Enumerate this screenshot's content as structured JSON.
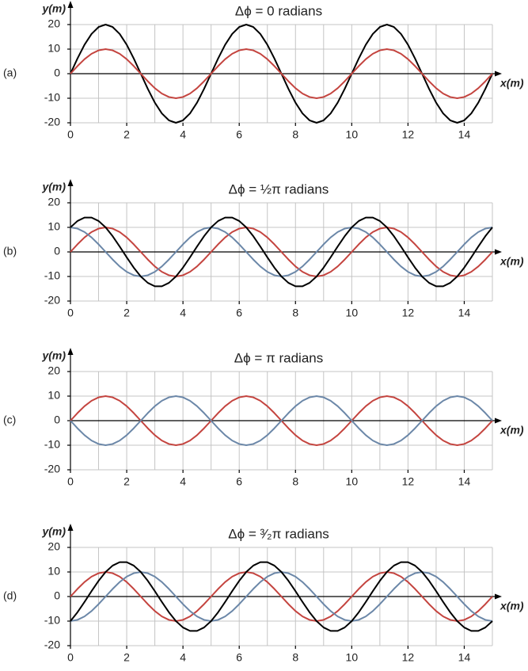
{
  "chart_data": [
    {
      "type": "line",
      "panel_label": "(a)",
      "title": "Δϕ = 0 radians",
      "x_label": "x(m)",
      "y_label": "y(m)",
      "x": [
        0,
        0.25,
        0.5,
        0.75,
        1,
        1.25,
        1.5,
        1.75,
        2,
        2.25,
        2.5,
        2.75,
        3,
        3.25,
        3.5,
        3.75,
        4,
        4.25,
        4.5,
        4.75,
        5,
        5.25,
        5.5,
        5.75,
        6,
        6.25,
        6.5,
        6.75,
        7,
        7.25,
        7.5,
        7.75,
        8,
        8.25,
        8.5,
        8.75,
        9,
        9.25,
        9.5,
        9.75,
        10,
        10.25,
        10.5,
        10.75,
        11,
        11.25,
        11.5,
        11.75,
        12,
        12.25,
        12.5,
        12.75,
        13,
        13.25,
        13.5,
        13.75,
        14,
        14.25,
        14.5,
        14.75,
        15
      ],
      "series": [
        {
          "color": "#000000",
          "values": [
            0,
            6.2,
            11.8,
            16.2,
            19,
            20,
            19,
            16.2,
            11.8,
            6.2,
            0,
            -6.2,
            -11.8,
            -16.2,
            -19,
            -20,
            -19,
            -16.2,
            -11.8,
            -6.2,
            0,
            6.2,
            11.8,
            16.2,
            19,
            20,
            19,
            16.2,
            11.8,
            6.2,
            0,
            -6.2,
            -11.8,
            -16.2,
            -19,
            -20,
            -19,
            -16.2,
            -11.8,
            -6.2,
            0,
            6.2,
            11.8,
            16.2,
            19,
            20,
            19,
            16.2,
            11.8,
            6.2,
            0,
            -6.2,
            -11.8,
            -16.2,
            -19,
            -20,
            -19,
            -16.2,
            -11.8,
            -6.2,
            0
          ]
        },
        {
          "color": "#c4443f",
          "values": [
            0,
            3.1,
            5.9,
            8.1,
            9.5,
            10,
            9.5,
            8.1,
            5.9,
            3.1,
            0,
            -3.1,
            -5.9,
            -8.1,
            -9.5,
            -10,
            -9.5,
            -8.1,
            -5.9,
            -3.1,
            0,
            3.1,
            5.9,
            8.1,
            9.5,
            10,
            9.5,
            8.1,
            5.9,
            3.1,
            0,
            -3.1,
            -5.9,
            -8.1,
            -9.5,
            -10,
            -9.5,
            -8.1,
            -5.9,
            -3.1,
            0,
            3.1,
            5.9,
            8.1,
            9.5,
            10,
            9.5,
            8.1,
            5.9,
            3.1,
            0,
            -3.1,
            -5.9,
            -8.1,
            -9.5,
            -10,
            -9.5,
            -8.1,
            -5.9,
            -3.1,
            0
          ]
        }
      ],
      "xlim": [
        0,
        15
      ],
      "ylim": [
        -20,
        20
      ],
      "xticks": [
        0,
        2,
        4,
        6,
        8,
        10,
        12,
        14
      ],
      "x_minor_ticks": [
        1,
        3,
        5,
        7,
        9,
        11,
        13,
        15
      ],
      "yticks": [
        -20,
        -10,
        0,
        10,
        20
      ],
      "grid": true
    },
    {
      "type": "line",
      "panel_label": "(b)",
      "title": "Δϕ = ½π radians",
      "x_label": "x(m)",
      "y_label": "y(m)",
      "x": [
        0,
        0.25,
        0.5,
        0.75,
        1,
        1.25,
        1.5,
        1.75,
        2,
        2.25,
        2.5,
        2.75,
        3,
        3.25,
        3.5,
        3.75,
        4,
        4.25,
        4.5,
        4.75,
        5,
        5.25,
        5.5,
        5.75,
        6,
        6.25,
        6.5,
        6.75,
        7,
        7.25,
        7.5,
        7.75,
        8,
        8.25,
        8.5,
        8.75,
        9,
        9.25,
        9.5,
        9.75,
        10,
        10.25,
        10.5,
        10.75,
        11,
        11.25,
        11.5,
        11.75,
        12,
        12.25,
        12.5,
        12.75,
        13,
        13.25,
        13.5,
        13.75,
        14,
        14.25,
        14.5,
        14.75,
        15
      ],
      "series": [
        {
          "color": "#c4443f",
          "values": [
            0,
            3.1,
            5.9,
            8.1,
            9.5,
            10,
            9.5,
            8.1,
            5.9,
            3.1,
            0,
            -3.1,
            -5.9,
            -8.1,
            -9.5,
            -10,
            -9.5,
            -8.1,
            -5.9,
            -3.1,
            0,
            3.1,
            5.9,
            8.1,
            9.5,
            10,
            9.5,
            8.1,
            5.9,
            3.1,
            0,
            -3.1,
            -5.9,
            -8.1,
            -9.5,
            -10,
            -9.5,
            -8.1,
            -5.9,
            -3.1,
            0,
            3.1,
            5.9,
            8.1,
            9.5,
            10,
            9.5,
            8.1,
            5.9,
            3.1,
            0,
            -3.1,
            -5.9,
            -8.1,
            -9.5,
            -10,
            -9.5,
            -8.1,
            -5.9,
            -3.1,
            0
          ]
        },
        {
          "color": "#6b87a8",
          "values": [
            10,
            9.5,
            8.1,
            5.9,
            3.1,
            0,
            -3.1,
            -5.9,
            -8.1,
            -9.5,
            -10,
            -9.5,
            -8.1,
            -5.9,
            -3.1,
            0,
            3.1,
            5.9,
            8.1,
            9.5,
            10,
            9.5,
            8.1,
            5.9,
            3.1,
            0,
            -3.1,
            -5.9,
            -8.1,
            -9.5,
            -10,
            -9.5,
            -8.1,
            -5.9,
            -3.1,
            0,
            3.1,
            5.9,
            8.1,
            9.5,
            10,
            9.5,
            8.1,
            5.9,
            3.1,
            0,
            -3.1,
            -5.9,
            -8.1,
            -9.5,
            -10,
            -9.5,
            -8.1,
            -5.9,
            -3.1,
            0,
            3.1,
            5.9,
            8.1,
            9.5,
            10
          ]
        },
        {
          "color": "#000000",
          "values": [
            10,
            12.6,
            14,
            14,
            12.6,
            10,
            6.4,
            2.2,
            -2.2,
            -6.4,
            -10,
            -12.6,
            -14,
            -14,
            -12.6,
            -10,
            -6.4,
            -2.2,
            2.2,
            6.4,
            10,
            12.6,
            14,
            14,
            12.6,
            10,
            6.4,
            2.2,
            -2.2,
            -6.4,
            -10,
            -12.6,
            -14,
            -14,
            -12.6,
            -10,
            -6.4,
            -2.2,
            2.2,
            6.4,
            10,
            12.6,
            14,
            14,
            12.6,
            10,
            6.4,
            2.2,
            -2.2,
            -6.4,
            -10,
            -12.6,
            -14,
            -14,
            -12.6,
            -10,
            -6.4,
            -2.2,
            2.2,
            6.4,
            10
          ]
        }
      ],
      "xlim": [
        0,
        15
      ],
      "ylim": [
        -20,
        20
      ],
      "xticks": [
        0,
        2,
        4,
        6,
        8,
        10,
        12,
        14
      ],
      "x_minor_ticks": [
        1,
        3,
        5,
        7,
        9,
        11,
        13,
        15
      ],
      "yticks": [
        -20,
        -10,
        0,
        10,
        20
      ],
      "grid": true
    },
    {
      "type": "line",
      "panel_label": "(c)",
      "title": "Δϕ = π radians",
      "x_label": "x(m)",
      "y_label": "y(m)",
      "x": [
        0,
        0.25,
        0.5,
        0.75,
        1,
        1.25,
        1.5,
        1.75,
        2,
        2.25,
        2.5,
        2.75,
        3,
        3.25,
        3.5,
        3.75,
        4,
        4.25,
        4.5,
        4.75,
        5,
        5.25,
        5.5,
        5.75,
        6,
        6.25,
        6.5,
        6.75,
        7,
        7.25,
        7.5,
        7.75,
        8,
        8.25,
        8.5,
        8.75,
        9,
        9.25,
        9.5,
        9.75,
        10,
        10.25,
        10.5,
        10.75,
        11,
        11.25,
        11.5,
        11.75,
        12,
        12.25,
        12.5,
        12.75,
        13,
        13.25,
        13.5,
        13.75,
        14,
        14.25,
        14.5,
        14.75,
        15
      ],
      "series": [
        {
          "color": "#c4443f",
          "values": [
            0,
            3.1,
            5.9,
            8.1,
            9.5,
            10,
            9.5,
            8.1,
            5.9,
            3.1,
            0,
            -3.1,
            -5.9,
            -8.1,
            -9.5,
            -10,
            -9.5,
            -8.1,
            -5.9,
            -3.1,
            0,
            3.1,
            5.9,
            8.1,
            9.5,
            10,
            9.5,
            8.1,
            5.9,
            3.1,
            0,
            -3.1,
            -5.9,
            -8.1,
            -9.5,
            -10,
            -9.5,
            -8.1,
            -5.9,
            -3.1,
            0,
            3.1,
            5.9,
            8.1,
            9.5,
            10,
            9.5,
            8.1,
            5.9,
            3.1,
            0,
            -3.1,
            -5.9,
            -8.1,
            -9.5,
            -10,
            -9.5,
            -8.1,
            -5.9,
            -3.1,
            0
          ]
        },
        {
          "color": "#6b87a8",
          "values": [
            0,
            -3.1,
            -5.9,
            -8.1,
            -9.5,
            -10,
            -9.5,
            -8.1,
            -5.9,
            -3.1,
            0,
            3.1,
            5.9,
            8.1,
            9.5,
            10,
            9.5,
            8.1,
            5.9,
            3.1,
            0,
            -3.1,
            -5.9,
            -8.1,
            -9.5,
            -10,
            -9.5,
            -8.1,
            -5.9,
            -3.1,
            0,
            3.1,
            5.9,
            8.1,
            9.5,
            10,
            9.5,
            8.1,
            5.9,
            3.1,
            0,
            -3.1,
            -5.9,
            -8.1,
            -9.5,
            -10,
            -9.5,
            -8.1,
            -5.9,
            -3.1,
            0,
            3.1,
            5.9,
            8.1,
            9.5,
            10,
            9.5,
            8.1,
            5.9,
            3.1,
            0
          ]
        }
      ],
      "xlim": [
        0,
        15
      ],
      "ylim": [
        -20,
        20
      ],
      "xticks": [
        0,
        2,
        4,
        6,
        8,
        10,
        12,
        14
      ],
      "x_minor_ticks": [
        1,
        3,
        5,
        7,
        9,
        11,
        13,
        15
      ],
      "yticks": [
        -20,
        -10,
        0,
        10,
        20
      ],
      "grid": true
    },
    {
      "type": "line",
      "panel_label": "(d)",
      "title": "Δϕ = ³⁄₂π radians",
      "x_label": "x(m)",
      "y_label": "y(m)",
      "x": [
        0,
        0.25,
        0.5,
        0.75,
        1,
        1.25,
        1.5,
        1.75,
        2,
        2.25,
        2.5,
        2.75,
        3,
        3.25,
        3.5,
        3.75,
        4,
        4.25,
        4.5,
        4.75,
        5,
        5.25,
        5.5,
        5.75,
        6,
        6.25,
        6.5,
        6.75,
        7,
        7.25,
        7.5,
        7.75,
        8,
        8.25,
        8.5,
        8.75,
        9,
        9.25,
        9.5,
        9.75,
        10,
        10.25,
        10.5,
        10.75,
        11,
        11.25,
        11.5,
        11.75,
        12,
        12.25,
        12.5,
        12.75,
        13,
        13.25,
        13.5,
        13.75,
        14,
        14.25,
        14.5,
        14.75,
        15
      ],
      "series": [
        {
          "color": "#c4443f",
          "values": [
            0,
            3.1,
            5.9,
            8.1,
            9.5,
            10,
            9.5,
            8.1,
            5.9,
            3.1,
            0,
            -3.1,
            -5.9,
            -8.1,
            -9.5,
            -10,
            -9.5,
            -8.1,
            -5.9,
            -3.1,
            0,
            3.1,
            5.9,
            8.1,
            9.5,
            10,
            9.5,
            8.1,
            5.9,
            3.1,
            0,
            -3.1,
            -5.9,
            -8.1,
            -9.5,
            -10,
            -9.5,
            -8.1,
            -5.9,
            -3.1,
            0,
            3.1,
            5.9,
            8.1,
            9.5,
            10,
            9.5,
            8.1,
            5.9,
            3.1,
            0,
            -3.1,
            -5.9,
            -8.1,
            -9.5,
            -10,
            -9.5,
            -8.1,
            -5.9,
            -3.1,
            0
          ]
        },
        {
          "color": "#6b87a8",
          "values": [
            -10,
            -9.5,
            -8.1,
            -5.9,
            -3.1,
            0,
            3.1,
            5.9,
            8.1,
            9.5,
            10,
            9.5,
            8.1,
            5.9,
            3.1,
            0,
            -3.1,
            -5.9,
            -8.1,
            -9.5,
            -10,
            -9.5,
            -8.1,
            -5.9,
            -3.1,
            0,
            3.1,
            5.9,
            8.1,
            9.5,
            10,
            9.5,
            8.1,
            5.9,
            3.1,
            0,
            -3.1,
            -5.9,
            -8.1,
            -9.5,
            -10,
            -9.5,
            -8.1,
            -5.9,
            -3.1,
            0,
            3.1,
            5.9,
            8.1,
            9.5,
            10,
            9.5,
            8.1,
            5.9,
            3.1,
            0,
            -3.1,
            -5.9,
            -8.1,
            -9.5,
            -10
          ]
        },
        {
          "color": "#000000",
          "values": [
            -10,
            -6.4,
            -2.2,
            2.2,
            6.4,
            10,
            12.6,
            14,
            14,
            12.6,
            10,
            6.4,
            2.2,
            -2.2,
            -6.4,
            -10,
            -12.6,
            -14,
            -14,
            -12.6,
            -10,
            -6.4,
            -2.2,
            2.2,
            6.4,
            10,
            12.6,
            14,
            14,
            12.6,
            10,
            6.4,
            2.2,
            -2.2,
            -6.4,
            -10,
            -12.6,
            -14,
            -14,
            -12.6,
            -10,
            -6.4,
            -2.2,
            2.2,
            6.4,
            10,
            12.6,
            14,
            14,
            12.6,
            10,
            6.4,
            2.2,
            -2.2,
            -6.4,
            -10,
            -12.6,
            -14,
            -14,
            -12.6,
            -10
          ]
        }
      ],
      "xlim": [
        0,
        15
      ],
      "ylim": [
        -20,
        20
      ],
      "xticks": [
        0,
        2,
        4,
        6,
        8,
        10,
        12,
        14
      ],
      "x_minor_ticks": [
        1,
        3,
        5,
        7,
        9,
        11,
        13,
        15
      ],
      "yticks": [
        -20,
        -10,
        0,
        10,
        20
      ],
      "grid": true
    }
  ]
}
